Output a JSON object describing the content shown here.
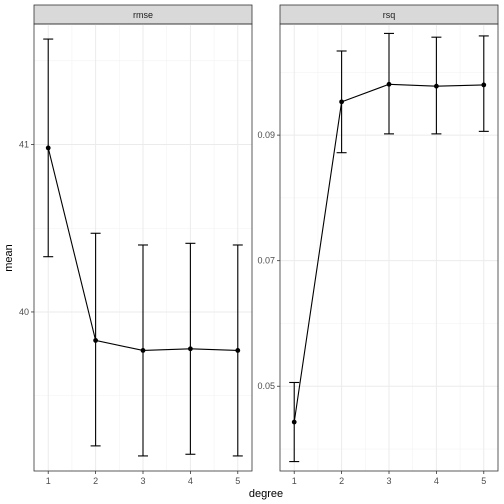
{
  "chart_data": {
    "type": "line",
    "xlabel": "degree",
    "ylabel": "mean",
    "facets": [
      {
        "name": "rmse",
        "x": [
          1,
          2,
          3,
          4,
          5
        ],
        "y": [
          40.98,
          39.83,
          39.77,
          39.78,
          39.77
        ],
        "ymin": [
          40.33,
          39.2,
          39.14,
          39.15,
          39.14
        ],
        "ymax": [
          41.63,
          40.47,
          40.4,
          40.41,
          40.4
        ],
        "xlim": [
          0.7,
          5.3
        ],
        "ylim": [
          39.05,
          41.72
        ],
        "yticks": [
          40,
          41
        ],
        "ytick_labels": [
          "40",
          "41"
        ]
      },
      {
        "name": "rsq",
        "x": [
          1,
          2,
          3,
          4,
          5
        ],
        "y": [
          0.0443,
          0.0953,
          0.0981,
          0.0978,
          0.098
        ],
        "ymin": [
          0.038,
          0.0872,
          0.0902,
          0.0902,
          0.0906
        ],
        "ymax": [
          0.0506,
          0.1034,
          0.1062,
          0.1056,
          0.1058
        ],
        "xlim": [
          0.7,
          5.3
        ],
        "ylim": [
          0.0365,
          0.1077
        ],
        "yticks": [
          0.05,
          0.07,
          0.09
        ],
        "ytick_labels": [
          "0.05",
          "0.07",
          "0.09"
        ]
      }
    ],
    "xticks": [
      1,
      2,
      3,
      4,
      5
    ],
    "xtick_labels": [
      "1",
      "2",
      "3",
      "4",
      "5"
    ],
    "grid": true,
    "legend": "none"
  }
}
